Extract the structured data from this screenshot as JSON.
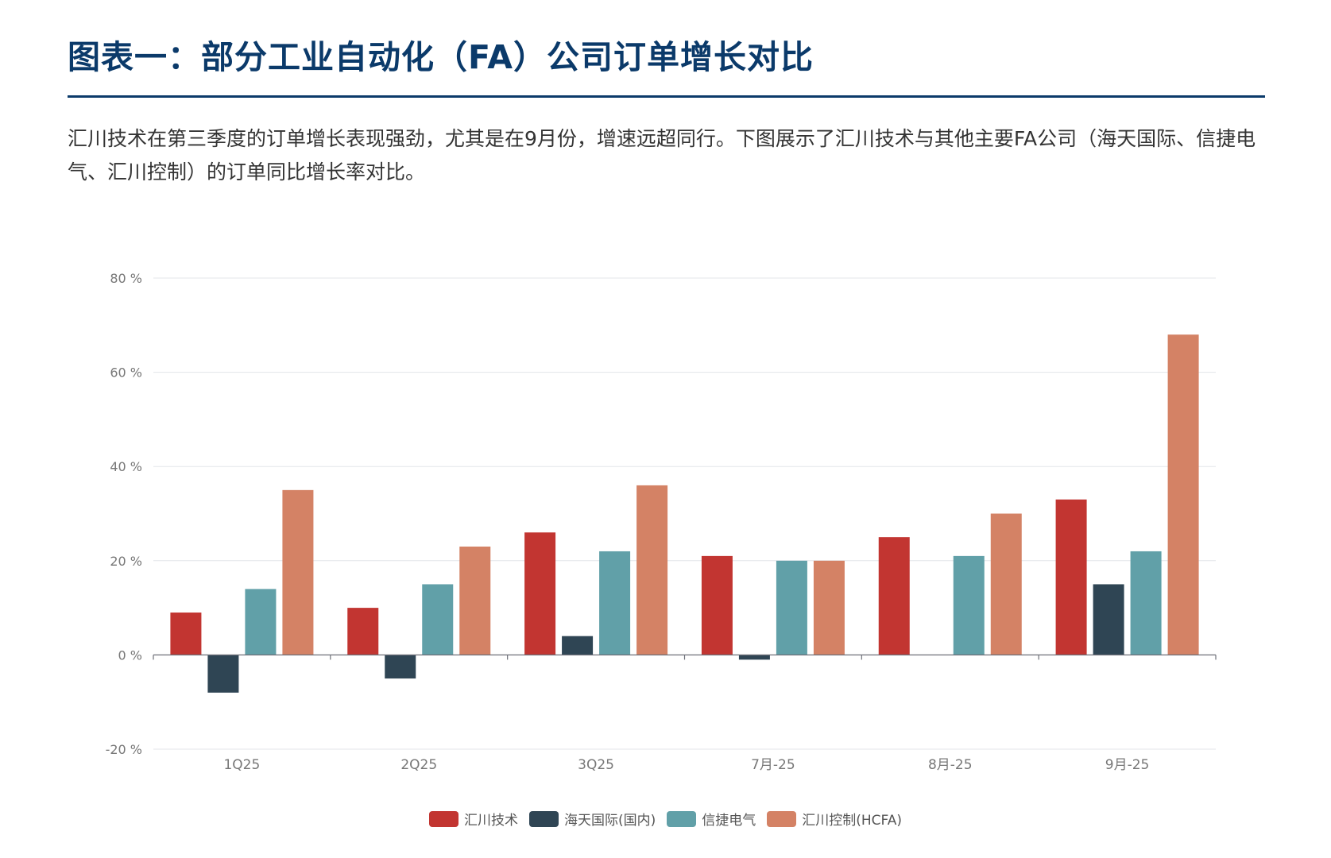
{
  "header": {
    "title": "图表一：部分工业自动化（FA）公司订单增长对比",
    "description": "汇川技术在第三季度的订单增长表现强劲，尤其是在9月份，增速远超同行。下图展示了汇川技术与其他主要FA公司（海天国际、信捷电气、汇川控制）的订单同比增长率对比。"
  },
  "chart_data": {
    "type": "bar",
    "title": "",
    "xlabel": "",
    "ylabel": "",
    "ylim": [
      -20,
      80
    ],
    "yticks": [
      -20,
      0,
      20,
      40,
      60,
      80
    ],
    "ytick_suffix": " %",
    "grid": true,
    "legend_position": "bottom-center",
    "categories": [
      "1Q25",
      "2Q25",
      "3Q25",
      "7月-25",
      "8月-25",
      "9月-25"
    ],
    "series": [
      {
        "name": "汇川技术",
        "color": "#c23531",
        "values": [
          9,
          10,
          26,
          21,
          25,
          33
        ]
      },
      {
        "name": "海天国际(国内)",
        "color": "#2f4554",
        "values": [
          -8,
          -5,
          4,
          -1,
          0,
          15
        ]
      },
      {
        "name": "信捷电气",
        "color": "#61a0a8",
        "values": [
          14,
          15,
          22,
          20,
          21,
          22
        ]
      },
      {
        "name": "汇川控制(HCFA)",
        "color": "#d48265",
        "values": [
          35,
          23,
          36,
          20,
          30,
          68
        ]
      }
    ]
  }
}
